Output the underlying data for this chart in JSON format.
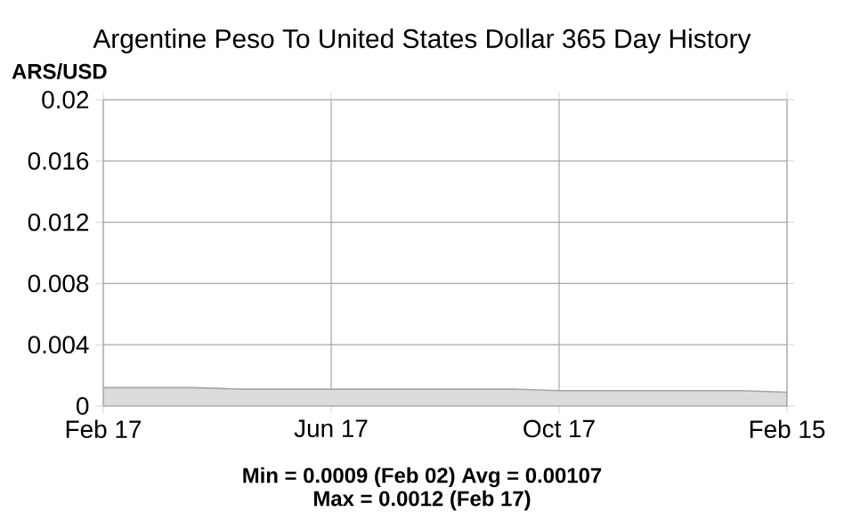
{
  "chart_data": {
    "type": "area",
    "title": "Argentine Peso To United States Dollar 365 Day History",
    "ylabel": "ARS/USD",
    "categories": [
      "Feb 17",
      null,
      null,
      null,
      null,
      "Jun 17",
      null,
      null,
      null,
      null,
      "Oct 17",
      null,
      null,
      null,
      null,
      "Feb 15"
    ],
    "series": [
      {
        "color": "#dcdcdc",
        "values": [
          0.0012,
          0.0012,
          0.0012,
          0.0011,
          0.0011,
          0.0011,
          0.0011,
          0.0011,
          0.0011,
          0.0011,
          0.001,
          0.001,
          0.001,
          0.001,
          0.001,
          0.0009
        ]
      }
    ],
    "ylim": [
      0,
      0.02
    ],
    "yticks": [
      0,
      0.004,
      0.008,
      0.012,
      0.016,
      0.02
    ],
    "grid": true,
    "annotations": [
      "Min = 0.0009 (Feb 02) Avg = 0.00107",
      "Max = 0.0012 (Feb 17)"
    ]
  }
}
